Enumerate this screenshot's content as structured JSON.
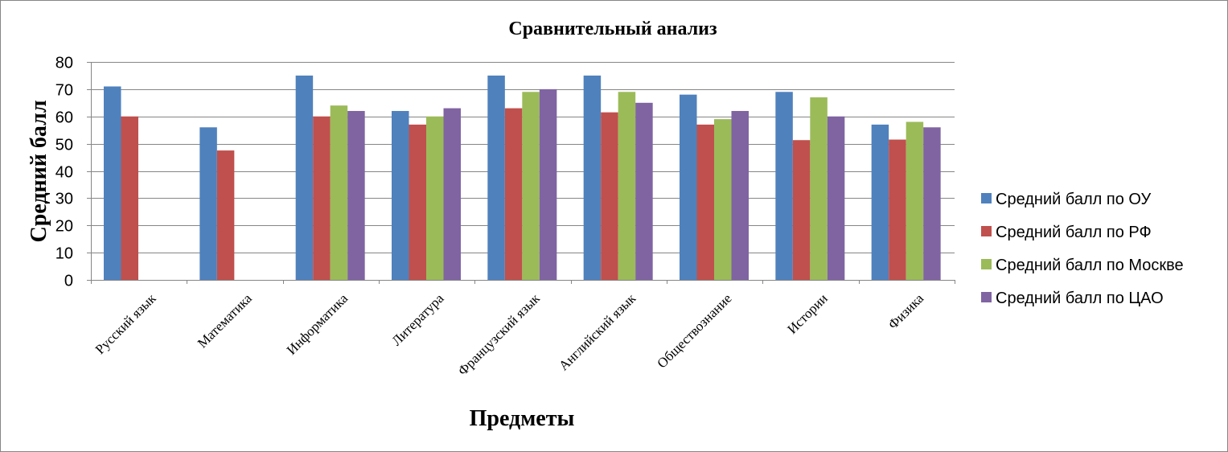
{
  "chart_data": {
    "type": "bar",
    "title": "Сравнительный анализ",
    "xlabel": "Предметы",
    "ylabel": "Средний балл",
    "ylim": [
      0,
      80
    ],
    "yticks": [
      "0",
      "10",
      "20",
      "30",
      "40",
      "50",
      "60",
      "70",
      "80"
    ],
    "grid": true,
    "legend_position": "right",
    "categories": [
      "Русский язык",
      "Математика",
      "Информатика",
      "Литература",
      "Французский язык",
      "Английский язык",
      "Обществознание",
      "Истории",
      "Физика"
    ],
    "series": [
      {
        "name": "Средний балл по ОУ",
        "color": "#4F81BD",
        "values": [
          71,
          56,
          75,
          62,
          75,
          75,
          68,
          69,
          57
        ]
      },
      {
        "name": "Средний балл по РФ",
        "color": "#C0504D",
        "values": [
          60,
          47.5,
          60,
          57,
          63,
          61.5,
          57,
          51.3,
          51.5
        ]
      },
      {
        "name": "Средний балл по Москве",
        "color": "#9BBB59",
        "values": [
          null,
          null,
          64,
          60,
          69,
          69,
          59,
          67,
          58
        ]
      },
      {
        "name": "Средний балл по ЦАО",
        "color": "#8064A2",
        "values": [
          null,
          null,
          62,
          63,
          70,
          65,
          62,
          60,
          56
        ]
      }
    ]
  }
}
